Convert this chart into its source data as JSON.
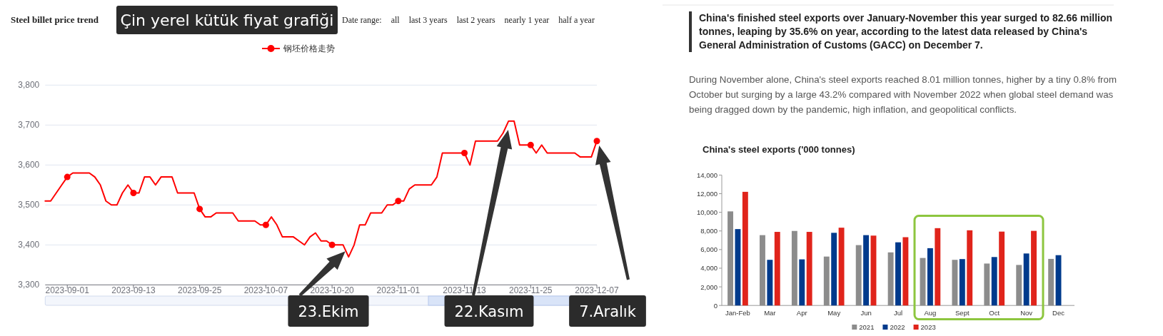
{
  "chart_data": [
    {
      "type": "line",
      "title": "Steel billet price trend",
      "legend": "top",
      "grid": "y",
      "line_style": "solid",
      "categories": [
        null,
        null,
        null,
        null,
        "2023-09-01",
        null,
        null,
        null,
        null,
        null,
        null,
        null,
        null,
        null,
        null,
        null,
        "2023-09-13",
        null,
        null,
        null,
        null,
        null,
        null,
        null,
        null,
        null,
        null,
        null,
        "2023-09-25",
        null,
        null,
        null,
        null,
        null,
        null,
        null,
        null,
        null,
        null,
        null,
        "2023-10-07",
        null,
        null,
        null,
        null,
        null,
        null,
        null,
        null,
        null,
        null,
        null,
        "2023-10-20",
        null,
        null,
        null,
        null,
        null,
        null,
        null,
        null,
        null,
        null,
        null,
        "2023-11-01",
        null,
        null,
        null,
        null,
        null,
        null,
        null,
        null,
        null,
        null,
        null,
        "2023-11-13",
        null,
        null,
        null,
        null,
        null,
        null,
        null,
        null,
        null,
        null,
        null,
        "2023-11-25",
        null,
        null,
        null,
        null,
        null,
        null,
        null,
        null,
        null,
        null,
        null,
        "2023-12-07"
      ],
      "series": [
        {
          "type": "scatter",
          "marker": "circle",
          "color": "#ff0000",
          "values": [
            null,
            null,
            null,
            null,
            3570,
            null,
            null,
            null,
            null,
            null,
            null,
            null,
            null,
            null,
            null,
            null,
            3530,
            null,
            null,
            null,
            null,
            null,
            null,
            null,
            null,
            null,
            null,
            null,
            3490,
            null,
            null,
            null,
            null,
            null,
            null,
            null,
            null,
            null,
            null,
            null,
            3450,
            null,
            null,
            null,
            null,
            null,
            null,
            null,
            null,
            null,
            null,
            null,
            3400,
            null,
            null,
            null,
            null,
            null,
            null,
            null,
            null,
            null,
            null,
            null,
            3510,
            null,
            null,
            null,
            null,
            null,
            null,
            null,
            null,
            null,
            null,
            null,
            3630,
            null,
            null,
            null,
            null,
            null,
            null,
            null,
            null,
            null,
            null,
            null,
            3650,
            null,
            null,
            null,
            null,
            null,
            null,
            null,
            null,
            null,
            null,
            null,
            3660
          ]
        },
        {
          "type": "line",
          "marker": "none",
          "name": "钢坯价格走势",
          "color": "#ff0000",
          "values": [
            3510,
            3510,
            3530,
            3550,
            3570,
            3580,
            3580,
            3580,
            3580,
            3570,
            3550,
            3510,
            3500,
            3500,
            3530,
            3550,
            3530,
            3530,
            3570,
            3570,
            3550,
            3570,
            3570,
            3570,
            3530,
            3530,
            3530,
            3530,
            3490,
            3470,
            3470,
            3480,
            3480,
            3480,
            3480,
            3460,
            3460,
            3460,
            3460,
            3450,
            3450,
            3470,
            3450,
            3420,
            3420,
            3420,
            3410,
            3400,
            3420,
            3430,
            3410,
            3410,
            3400,
            3400,
            3400,
            3370,
            3400,
            3450,
            3450,
            3480,
            3480,
            3480,
            3500,
            3500,
            3510,
            3510,
            3540,
            3550,
            3550,
            3550,
            3550,
            3570,
            3630,
            3630,
            3630,
            3630,
            3630,
            3600,
            3660,
            3660,
            3660,
            3660,
            3660,
            3680,
            3710,
            3710,
            3650,
            3650,
            3650,
            3630,
            3650,
            3630,
            3630,
            3630,
            3630,
            3630,
            3630,
            3620,
            3620,
            3620,
            3660
          ]
        }
      ],
      "ylim": [
        3300,
        3800
      ],
      "yticks": [
        {
          "value": 3300,
          "label": "3,300"
        },
        {
          "value": 3400,
          "label": "3,400"
        },
        {
          "value": 3500,
          "label": "3,500"
        },
        {
          "value": 3600,
          "label": "3,600"
        },
        {
          "value": 3700,
          "label": "3,700"
        },
        {
          "value": 3800,
          "label": "3,800"
        }
      ],
      "annotations": [
        "Çin yerel kütük fiyat grafiği",
        "Date range:",
        "all",
        "last 3 years",
        "last 2 years",
        "nearly 1 year",
        "half a year",
        "23.Ekim",
        "22.Kasım",
        "7.Aralık"
      ]
    },
    {
      "type": "other",
      "annotations": [
        "China's finished steel exports over January-November this year surged to 82.66 million tonnes, leaping by 35.6% on year, according to the latest data released by China's General Administration of Customs (GACC) on December 7.",
        "During November alone, China's steel exports reached 8.01 million tonnes, higher by a tiny 0.8% from October but surging by a large 43.2% compared with November 2022 when global steel demand was being dragged down by the pandemic, high inflation, and geopolitical conflicts."
      ]
    },
    {
      "type": "bar",
      "title": "China's steel exports ('000 tonnes)",
      "legend": "bottom",
      "categories": [
        "Jan-Feb",
        "Mar",
        "Apr",
        "May",
        "Jun",
        "Jul",
        "Aug",
        "Sept",
        "Oct",
        "Nov",
        "Dec"
      ],
      "series": [
        {
          "name": "2021",
          "color": "#8c8c8c",
          "values": [
            10100,
            7550,
            8000,
            5250,
            6480,
            5700,
            5100,
            4900,
            4500,
            4350,
            5000
          ]
        },
        {
          "name": "2022",
          "color": "#003a8c",
          "values": [
            8200,
            4900,
            4950,
            7800,
            7550,
            6780,
            6150,
            4980,
            5200,
            5580,
            5400
          ]
        },
        {
          "name": "2023",
          "color": "#e0241b",
          "values": [
            12200,
            7900,
            7900,
            8350,
            7500,
            7330,
            8300,
            8070,
            7930,
            8010,
            null
          ]
        }
      ],
      "ylim": [
        0,
        14000
      ],
      "yticks": [
        {
          "value": 0,
          "label": "0"
        },
        {
          "value": 2000,
          "label": "2,000"
        },
        {
          "value": 4000,
          "label": "4,000"
        },
        {
          "value": 6000,
          "label": "6,000"
        },
        {
          "value": 8000,
          "label": "8,000"
        },
        {
          "value": 10000,
          "label": "10,000"
        },
        {
          "value": 12000,
          "label": "12,000"
        },
        {
          "value": 14000,
          "label": "14,000"
        }
      ]
    }
  ]
}
